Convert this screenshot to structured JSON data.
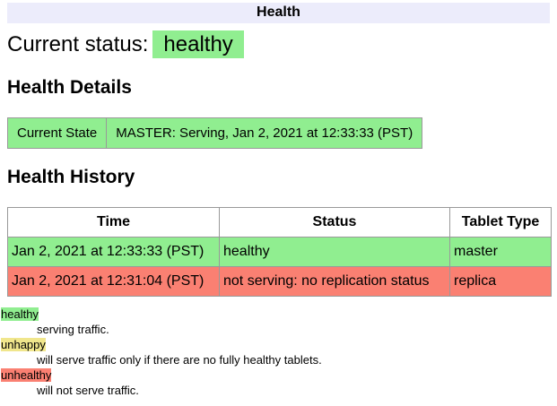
{
  "header": {
    "title": "Health"
  },
  "current_status": {
    "label": "Current status:",
    "value": "healthy",
    "state": "healthy"
  },
  "sections": {
    "details": {
      "heading": "Health Details",
      "table": {
        "rows": [
          {
            "state": "healthy",
            "cells": [
              "Current State",
              "MASTER: Serving, Jan 2, 2021 at 12:33:33 (PST)"
            ]
          }
        ]
      }
    },
    "history": {
      "heading": "Health History",
      "table": {
        "columns": [
          "Time",
          "Status",
          "Tablet Type"
        ],
        "rows": [
          {
            "state": "healthy",
            "time": "Jan 2, 2021 at 12:33:33 (PST)",
            "status": "healthy",
            "tablet_type": "master"
          },
          {
            "state": "unhealthy",
            "time": "Jan 2, 2021 at 12:31:04 (PST)",
            "status": "not serving: no replication status",
            "tablet_type": "replica"
          }
        ]
      }
    }
  },
  "legend": [
    {
      "state": "healthy",
      "term": "healthy",
      "description": "serving traffic."
    },
    {
      "state": "unhappy",
      "term": "unhappy",
      "description": "will serve traffic only if there are no fully healthy tablets."
    },
    {
      "state": "unhealthy",
      "term": "unhealthy",
      "description": "will not serve traffic."
    }
  ],
  "colors": {
    "healthy": "#90EE90",
    "unhappy": "#F0E68C",
    "unhealthy": "#FA8072",
    "header_bg": "#ECECFB",
    "table_border": "#999999"
  }
}
